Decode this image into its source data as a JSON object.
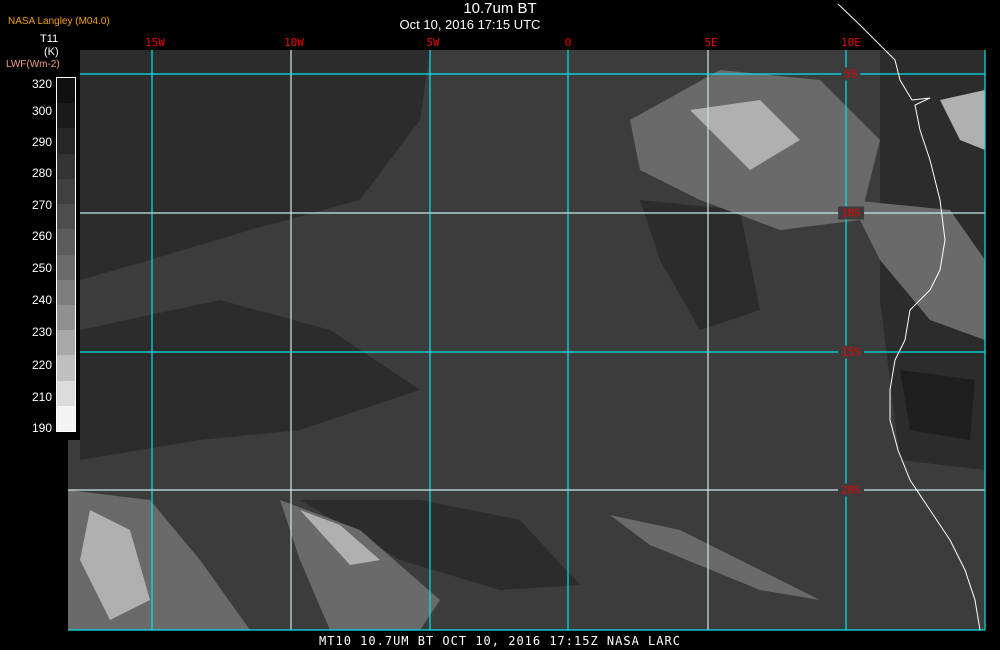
{
  "header": {
    "title": "10.7um BT",
    "subtitle": "Oct 10, 2016 17:15 UTC",
    "organization": "NASA Langley (M04.0)"
  },
  "colorbar": {
    "variable": "T11",
    "unit": "(K)",
    "secondary_label": "LWF(Wm-2)",
    "ticks": [
      "320",
      "300",
      "290",
      "280",
      "270",
      "260",
      "250",
      "240",
      "230",
      "220",
      "210",
      "190"
    ],
    "colors": [
      "#101010",
      "#1a1a1a",
      "#262626",
      "#333333",
      "#404040",
      "#4d4d4d",
      "#5c5c5c",
      "#6b6b6b",
      "#7d7d7d",
      "#909090",
      "#a8a8a8",
      "#c0c0c0",
      "#dcdcdc",
      "#f4f4f4"
    ]
  },
  "grid": {
    "longitudes": [
      "15W",
      "10W",
      "5W",
      "0",
      "5E",
      "10E"
    ],
    "latitudes": [
      "5S",
      "10S",
      "15S",
      "20S"
    ],
    "color": "#00e5ee",
    "label_color": "#ee0000"
  },
  "footer": {
    "text": "MT10   10.7UM BT   OCT 10, 2016 17:15Z   NASA LARC"
  },
  "colors": {
    "ocean": "#3c3c3c",
    "coast": "#ffffff"
  }
}
